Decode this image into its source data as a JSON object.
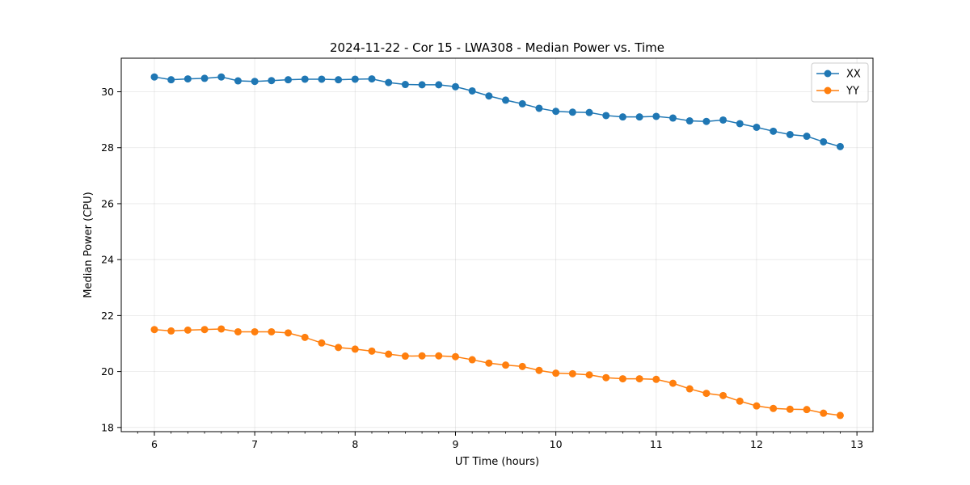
{
  "chart_data": {
    "type": "line",
    "title": "2024-11-22 - Cor 15 - LWA308 - Median Power vs. Time",
    "xlabel": "UT Time (hours)",
    "ylabel": "Median Power (CPU)",
    "xlim": [
      5.67,
      13.16
    ],
    "ylim": [
      17.85,
      31.2
    ],
    "xticks": [
      6,
      7,
      8,
      9,
      10,
      11,
      12,
      13
    ],
    "xtick_labels": [
      "6",
      "7",
      "8",
      "9",
      "10",
      "11",
      "12",
      "13"
    ],
    "yticks": [
      18,
      20,
      22,
      24,
      26,
      28,
      30
    ],
    "ytick_labels": [
      "18",
      "20",
      "22",
      "24",
      "26",
      "28",
      "30"
    ],
    "grid": true,
    "legend_position": "top-right",
    "x": [
      6.0,
      6.1667,
      6.3333,
      6.5,
      6.6667,
      6.8333,
      7.0,
      7.1667,
      7.3333,
      7.5,
      7.6667,
      7.8333,
      8.0,
      8.1667,
      8.3333,
      8.5,
      8.6667,
      8.8333,
      9.0,
      9.1667,
      9.3333,
      9.5,
      9.6667,
      9.8333,
      10.0,
      10.1667,
      10.3333,
      10.5,
      10.6667,
      10.8333,
      11.0,
      11.1667,
      11.3333,
      11.5,
      11.6667,
      11.8333,
      12.0,
      12.1667,
      12.3333,
      12.5,
      12.6667,
      12.8333
    ],
    "series": [
      {
        "name": "XX",
        "color": "#1f77b4",
        "values": [
          30.53,
          30.43,
          30.46,
          30.48,
          30.53,
          30.39,
          30.37,
          30.4,
          30.43,
          30.45,
          30.45,
          30.43,
          30.45,
          30.46,
          30.33,
          30.26,
          30.25,
          30.25,
          30.18,
          30.03,
          29.85,
          29.7,
          29.57,
          29.41,
          29.3,
          29.27,
          29.26,
          29.15,
          29.1,
          29.1,
          29.12,
          29.06,
          28.96,
          28.94,
          28.99,
          28.86,
          28.73,
          28.59,
          28.47,
          28.41,
          28.21,
          28.04
        ]
      },
      {
        "name": "YY",
        "color": "#ff7f0e",
        "values": [
          21.5,
          21.45,
          21.48,
          21.5,
          21.52,
          21.42,
          21.42,
          21.42,
          21.38,
          21.22,
          21.02,
          20.86,
          20.8,
          20.73,
          20.62,
          20.55,
          20.56,
          20.56,
          20.53,
          20.42,
          20.3,
          20.23,
          20.18,
          20.04,
          19.94,
          19.92,
          19.88,
          19.78,
          19.74,
          19.74,
          19.72,
          19.58,
          19.38,
          19.22,
          19.14,
          18.94,
          18.77,
          18.68,
          18.65,
          18.64,
          18.51,
          18.43
        ]
      }
    ]
  }
}
